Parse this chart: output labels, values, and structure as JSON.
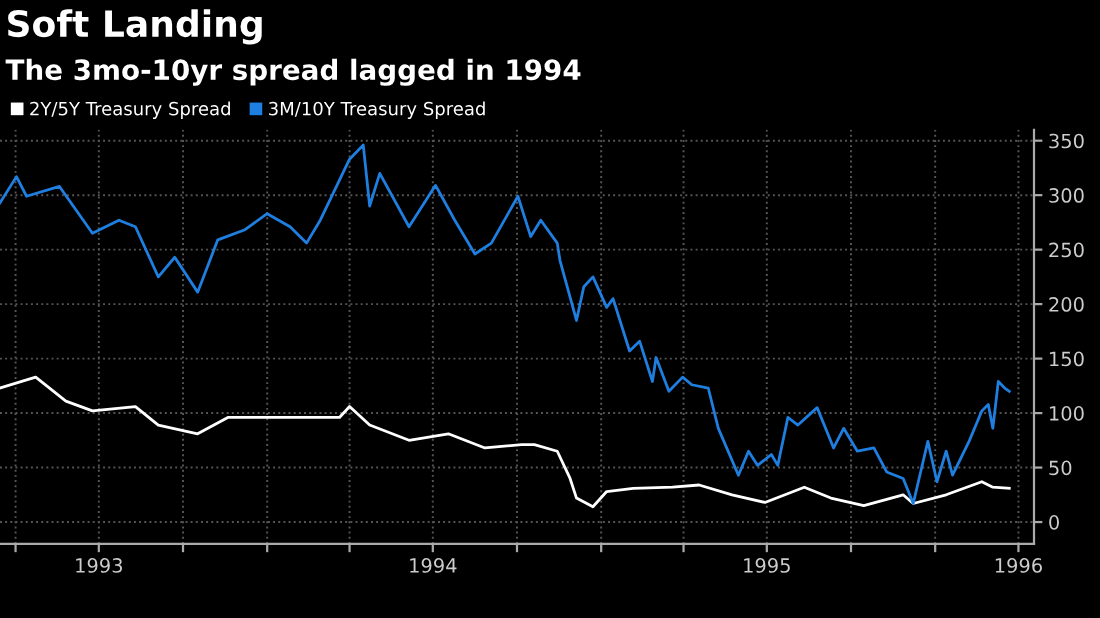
{
  "chart_data": {
    "type": "line",
    "title": "Soft Landing",
    "subtitle": "The 3mo-10yr spread lagged in 1994",
    "series": [
      {
        "name": "2Y/5Y Treasury Spread",
        "color": "#ffffff",
        "x": [
          "1993-03-15",
          "1993-04-23",
          "1993-05-26",
          "1993-06-24",
          "1993-08-10",
          "1993-09-04",
          "1993-10-17",
          "1993-11-19",
          "1993-12-28",
          "1994-02-16",
          "1994-03-21",
          "1994-04-01",
          "1994-04-23",
          "1994-06-05",
          "1994-07-18",
          "1994-08-27",
          "1994-10-06",
          "1994-10-20",
          "1994-11-14",
          "1994-11-28",
          "1994-12-05",
          "1994-12-23",
          "1995-01-07",
          "1995-02-05",
          "1995-03-20",
          "1995-04-18",
          "1995-05-24",
          "1995-06-29",
          "1995-08-11",
          "1995-09-09",
          "1995-10-15",
          "1995-11-27",
          "1995-12-08",
          "1996-01-13",
          "1996-02-21",
          "1996-03-04",
          "1996-03-22"
        ],
        "values": [
          123,
          133,
          111,
          102,
          106,
          89,
          81,
          96,
          96,
          96,
          96,
          106,
          89,
          75,
          81,
          68,
          71,
          71,
          65,
          40,
          22,
          14,
          28,
          31,
          32,
          34,
          25,
          18,
          32,
          22,
          15,
          25,
          17,
          25,
          37,
          32,
          31
        ]
      },
      {
        "name": "3M/10Y Treasury Spread",
        "color": "#1f7fe0",
        "x": [
          "1993-03-15",
          "1993-04-02",
          "1993-04-13",
          "1993-05-19",
          "1993-06-24",
          "1993-07-23",
          "1993-08-10",
          "1993-09-04",
          "1993-09-22",
          "1993-10-17",
          "1993-11-08",
          "1993-12-07",
          "1994-01-01",
          "1994-01-26",
          "1994-02-13",
          "1994-02-28",
          "1994-04-01",
          "1994-04-16",
          "1994-04-23",
          "1994-05-04",
          "1994-06-05",
          "1994-07-04",
          "1994-07-25",
          "1994-08-16",
          "1994-09-03",
          "1994-10-02",
          "1994-10-16",
          "1994-10-27",
          "1994-11-14",
          "1994-11-17",
          "1994-12-05",
          "1994-12-13",
          "1994-12-23",
          "1995-01-07",
          "1995-01-14",
          "1995-02-01",
          "1995-02-12",
          "1995-02-26",
          "1995-03-02",
          "1995-03-16",
          "1995-03-31",
          "1995-04-10",
          "1995-04-28",
          "1995-05-09",
          "1995-05-31",
          "1995-06-11",
          "1995-06-21",
          "1995-07-06",
          "1995-07-13",
          "1995-07-24",
          "1995-08-04",
          "1995-08-25",
          "1995-09-12",
          "1995-09-23",
          "1995-10-08",
          "1995-10-26",
          "1995-11-09",
          "1995-11-27",
          "1995-12-08",
          "1995-12-24",
          "1996-01-03",
          "1996-01-13",
          "1996-01-20",
          "1996-02-07",
          "1996-02-21",
          "1996-02-28",
          "1996-03-04",
          "1996-03-10",
          "1996-03-17",
          "1996-03-22"
        ],
        "values": [
          293,
          317,
          299,
          308,
          265,
          277,
          271,
          225,
          243,
          211,
          259,
          268,
          283,
          271,
          256,
          277,
          333,
          346,
          290,
          320,
          271,
          309,
          277,
          246,
          256,
          299,
          262,
          277,
          256,
          240,
          185,
          216,
          225,
          197,
          205,
          157,
          166,
          129,
          151,
          120,
          133,
          126,
          123,
          86,
          43,
          65,
          52,
          62,
          52,
          96,
          89,
          105,
          68,
          86,
          65,
          68,
          46,
          40,
          17,
          74,
          37,
          65,
          43,
          74,
          102,
          108,
          86,
          129,
          123,
          120
        ]
      }
    ],
    "xlim": [
      "1993-03-15",
      "1996-04-18"
    ],
    "xticks": [
      {
        "value": "1993-04-01",
        "label": null
      },
      {
        "value": "1993-07-01",
        "label": "1993"
      },
      {
        "value": "1993-10-01",
        "label": null
      },
      {
        "value": "1994-01-01",
        "label": null
      },
      {
        "value": "1994-04-01",
        "label": null
      },
      {
        "value": "1994-07-01",
        "label": "1994"
      },
      {
        "value": "1994-10-01",
        "label": null
      },
      {
        "value": "1995-01-01",
        "label": null
      },
      {
        "value": "1995-04-01",
        "label": null
      },
      {
        "value": "1995-07-01",
        "label": "1995"
      },
      {
        "value": "1995-10-01",
        "label": null
      },
      {
        "value": "1996-01-01",
        "label": null
      },
      {
        "value": "1996-04-01",
        "label": "1996"
      }
    ],
    "ylim": [
      -20,
      360
    ],
    "yticks": [
      0,
      50,
      100,
      150,
      200,
      250,
      300,
      350
    ],
    "grid": true,
    "legend": "top left",
    "marker": "none",
    "line_style": "solid"
  }
}
